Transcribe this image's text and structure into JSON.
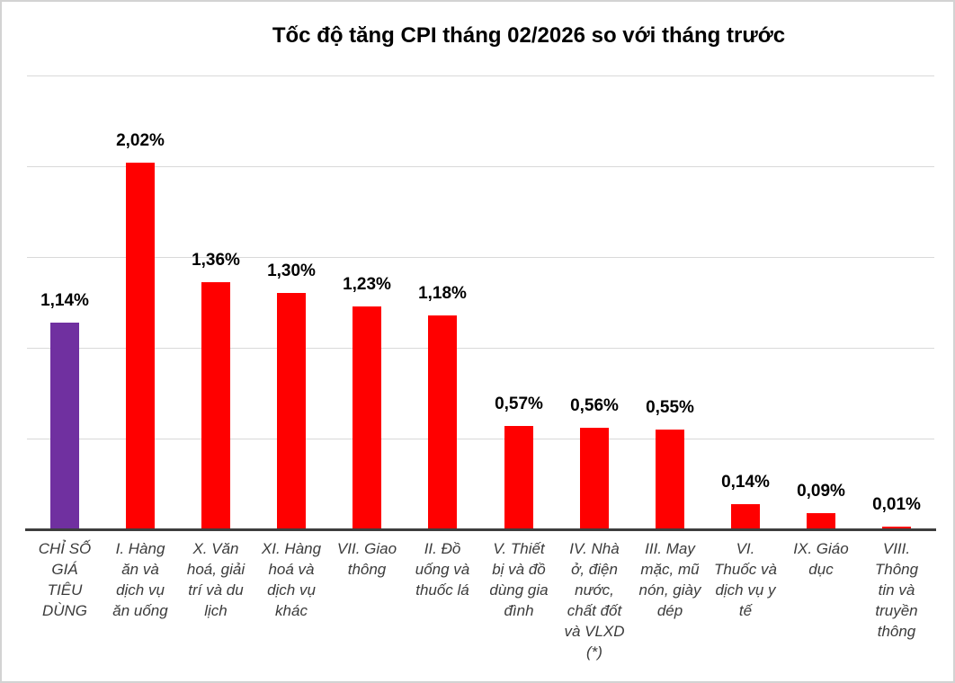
{
  "title": "Tốc độ tăng CPI tháng 02/2026 so với tháng trước",
  "chart_data": {
    "type": "bar",
    "title": "Tốc độ tăng CPI tháng 02/2026 so với tháng trước",
    "categories": [
      "CHỈ SỐ GIÁ TIÊU DÙNG",
      "I. Hàng ăn và dịch vụ ăn uống",
      "X. Văn hoá, giải trí và du lịch",
      "XI. Hàng hoá và dịch vụ khác",
      "VII. Giao thông",
      "II. Đồ uống và thuốc lá",
      "V. Thiết bị và đồ dùng gia đình",
      "IV. Nhà ở, điện nước, chất đốt và VLXD (*)",
      "III. May mặc, mũ nón, giày dép",
      "VI. Thuốc và dịch vụ y tế",
      "IX. Giáo dục",
      "VIII. Thông tin và truyền thông"
    ],
    "category_lines": [
      [
        "CHỈ SỐ",
        "GIÁ",
        "TIÊU",
        "DÙNG"
      ],
      [
        "I. Hàng",
        "ăn và",
        "dịch vụ",
        "ăn uống"
      ],
      [
        "X. Văn",
        "hoá, giải",
        "trí và du",
        "lịch"
      ],
      [
        "XI. Hàng",
        "hoá và",
        "dịch vụ",
        "khác"
      ],
      [
        "VII. Giao",
        "thông"
      ],
      [
        "II. Đồ",
        "uống và",
        "thuốc lá"
      ],
      [
        "V. Thiết",
        "bị và đồ",
        "dùng gia",
        "đình"
      ],
      [
        "IV. Nhà",
        "ở, điện",
        "nước,",
        "chất đốt",
        "và VLXD",
        "(*)"
      ],
      [
        "III. May",
        "mặc, mũ",
        "nón, giày",
        "dép"
      ],
      [
        "VI.",
        "Thuốc và",
        "dịch vụ y",
        "tế"
      ],
      [
        "IX. Giáo",
        "dục"
      ],
      [
        "VIII.",
        "Thông",
        "tin và",
        "truyền",
        "thông"
      ]
    ],
    "values": [
      1.14,
      2.02,
      1.36,
      1.3,
      1.23,
      1.18,
      0.57,
      0.56,
      0.55,
      0.14,
      0.09,
      0.01
    ],
    "value_labels": [
      "1,14%",
      "2,02%",
      "1,36%",
      "1,30%",
      "1,23%",
      "1,18%",
      "0,57%",
      "0,56%",
      "0,55%",
      "0,14%",
      "0,09%",
      "0,01%"
    ],
    "xlabel": "",
    "ylabel": "",
    "ylim": [
      0,
      2.5
    ],
    "gridlines": {
      "orientation": "horizontal",
      "step": 0.5,
      "max": 2.5,
      "visible": true
    },
    "legend": "none",
    "bar_color": "#FF0000",
    "highlight_index": 0,
    "highlight_color": "#7030A0",
    "value_label_color": "#000000",
    "category_label_color": "#3B3B3B",
    "gridline_color": "#D9D9D9",
    "axis_line_color": "#3D3D3D",
    "background_color": "#FFFFFF",
    "border_color": "#D3D3D3"
  }
}
